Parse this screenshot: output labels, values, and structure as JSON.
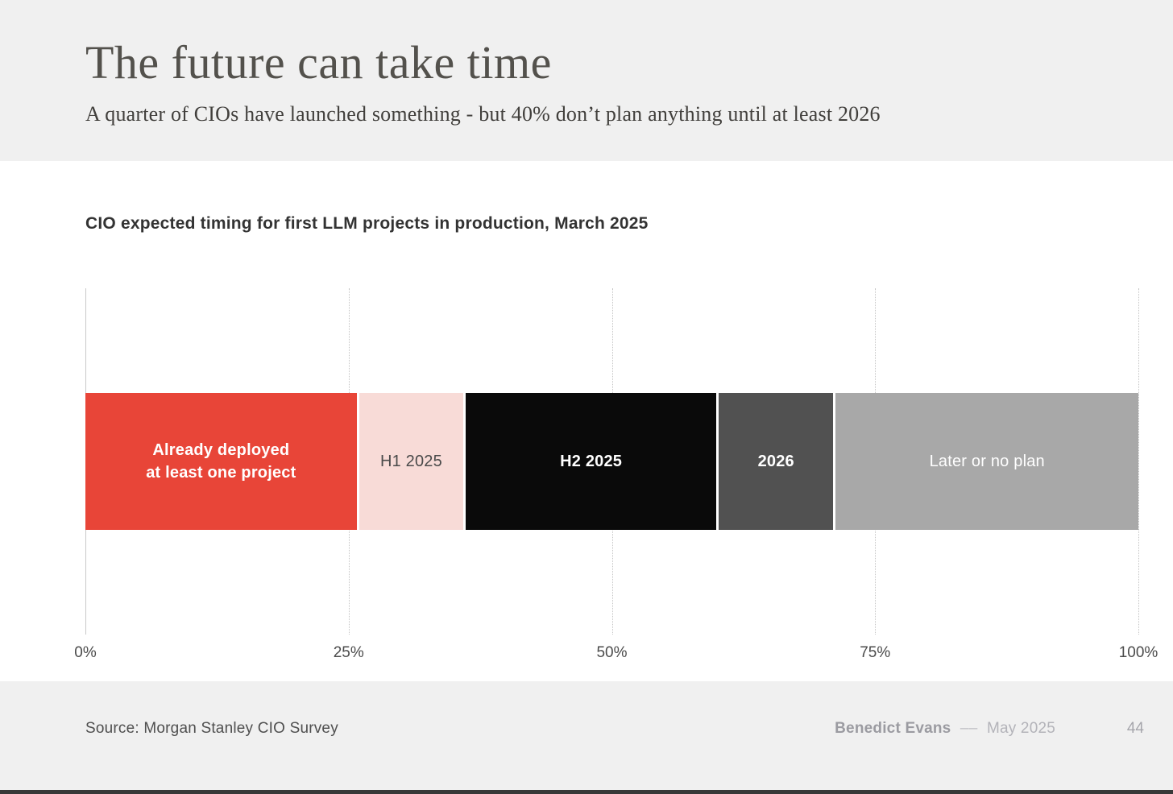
{
  "slide": {
    "title": "The future can take time",
    "subtitle": "A quarter of CIOs have launched something - but 40% don’t plan anything until at least 2026",
    "footer": {
      "source": "Source: Morgan Stanley CIO Survey",
      "author": "Benedict Evans",
      "separator": "––",
      "date": "May 2025",
      "page_number": "44"
    }
  },
  "chart_data": {
    "type": "bar",
    "variant": "horizontal-stacked",
    "title": "CIO expected timing for first LLM projects in production, March 2025",
    "categories": [
      "Already deployed at least one project",
      "H1 2025",
      "H2 2025",
      "2026",
      "Later or no plan"
    ],
    "values": [
      26,
      10,
      24,
      11,
      29
    ],
    "unit": "%",
    "xlabel": "",
    "ylabel": "",
    "xlim": [
      0,
      100
    ],
    "x_ticks": [
      "0%",
      "25%",
      "50%",
      "75%",
      "100%"
    ],
    "grid": "vertical, dotted at 25/50/75/100, solid at 0",
    "legend": "none",
    "segments": [
      {
        "id": "already-deployed",
        "label": "Already deployed at least one project",
        "label_lines": [
          "Already deployed",
          "at least one project"
        ],
        "value": 26,
        "color": "#E84538",
        "text_color": "#FFFFFF",
        "bold": true
      },
      {
        "id": "h1-2025",
        "label": "H1 2025",
        "value": 10,
        "color": "#F8DBD7",
        "text_color": "#4A4A4A",
        "bold": false
      },
      {
        "id": "h2-2025",
        "label": "H2 2025",
        "value": 24,
        "color": "#0A0A0A",
        "text_color": "#FFFFFF",
        "bold": true
      },
      {
        "id": "2026",
        "label": "2026",
        "value": 11,
        "color": "#515151",
        "text_color": "#FFFFFF",
        "bold": true
      },
      {
        "id": "later-or-no-plan",
        "label": "Later or no plan",
        "value": 29,
        "color": "#A8A8A8",
        "text_color": "#FFFFFF",
        "bold": false
      }
    ]
  },
  "colors": {
    "band_background": "#F0F0F0",
    "page_background": "#FFFFFF",
    "bottom_strip": "#383838",
    "gridline": "#C4C4C4",
    "title_text": "#53514C",
    "accent_red": "#E84538"
  }
}
